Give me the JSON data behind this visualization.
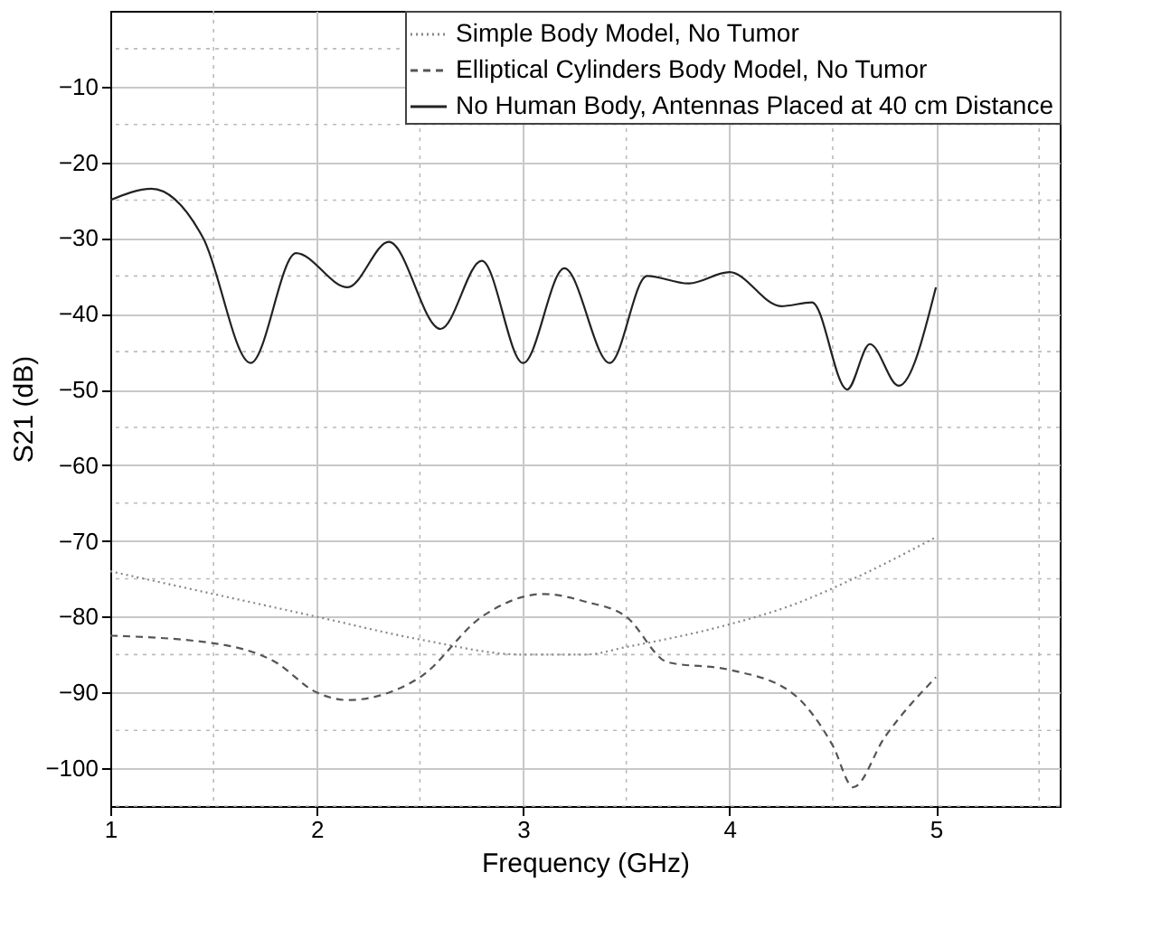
{
  "chart_data": {
    "type": "line",
    "xlabel": "Frequency (GHz)",
    "ylabel": "S21 (dB)",
    "xlim": [
      1,
      5.6
    ],
    "xticks": [
      1,
      2,
      3,
      4,
      5
    ],
    "ylim": [
      -105,
      0
    ],
    "yticks": [
      -100,
      -90,
      -80,
      -70,
      -60,
      -50,
      -40,
      -30,
      -20,
      -10
    ],
    "grid": true,
    "legend": "top right",
    "series": [
      {
        "name": "Simple Body Model, No Tumor",
        "color": "#888888",
        "line_style": "dotted",
        "x": [
          1,
          1.5,
          2,
          2.5,
          3,
          3.3,
          3.5,
          4,
          4.3,
          4.6,
          5
        ],
        "values": [
          -74,
          -77,
          -80,
          -83,
          -85,
          -85,
          -84,
          -81,
          -78.5,
          -75,
          -69.5
        ]
      },
      {
        "name": "Elliptical Cylinders Body Model, No Tumor",
        "color": "#555555",
        "line_style": "dashed",
        "x": [
          1,
          1.5,
          1.8,
          2,
          2.15,
          2.5,
          2.8,
          3.1,
          3.3,
          3.5,
          3.7,
          4,
          4.3,
          4.5,
          4.6,
          4.75,
          5
        ],
        "values": [
          -82.5,
          -83.5,
          -86,
          -90,
          -91,
          -88,
          -80,
          -77,
          -78,
          -80,
          -86,
          -87,
          -90,
          -97,
          -102.5,
          -96,
          -88
        ]
      },
      {
        "name": "No Human Body, Antennas Placed at 40 cm Distance",
        "color": "#222222",
        "line_style": "solid",
        "x": [
          1,
          1.2,
          1.45,
          1.68,
          1.9,
          2.15,
          2.35,
          2.6,
          2.8,
          3.0,
          3.2,
          3.42,
          3.6,
          3.8,
          4.0,
          4.25,
          4.4,
          4.57,
          4.68,
          4.82,
          5.0
        ],
        "values": [
          -25,
          -23.5,
          -30,
          -46.5,
          -32,
          -36.5,
          -30.5,
          -42,
          -33,
          -46.5,
          -34,
          -46.5,
          -35,
          -36,
          -34.5,
          -39,
          -38.5,
          -50,
          -44,
          -49.5,
          -36.5
        ]
      }
    ]
  }
}
